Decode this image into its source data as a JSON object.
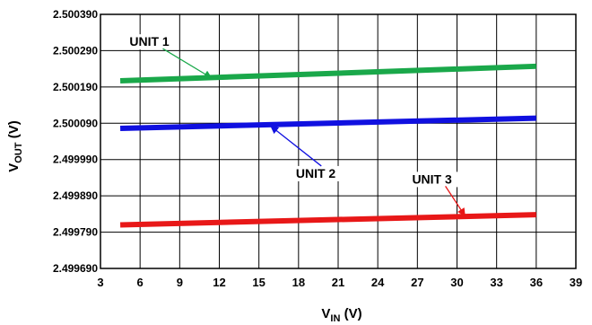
{
  "chart_data": {
    "type": "line",
    "xlabel": "V",
    "xlabel_sub": "IN",
    "xlabel_unit": " (V)",
    "ylabel": "V",
    "ylabel_sub": "OUT",
    "ylabel_unit": " (V)",
    "xlim": [
      3,
      39
    ],
    "ylim": [
      2.49969,
      2.50039
    ],
    "x_ticks": [
      "3",
      "6",
      "9",
      "12",
      "15",
      "18",
      "21",
      "24",
      "27",
      "30",
      "33",
      "36",
      "39"
    ],
    "x_tick_values": [
      3,
      6,
      9,
      12,
      15,
      18,
      21,
      24,
      27,
      30,
      33,
      36,
      39
    ],
    "y_ticks": [
      "2.499690",
      "2.499790",
      "2.499890",
      "2.499990",
      "2.500090",
      "2.500190",
      "2.500290",
      "2.500390"
    ],
    "y_tick_values": [
      2.49969,
      2.49979,
      2.49989,
      2.49999,
      2.50009,
      2.50019,
      2.50029,
      2.50039
    ],
    "grid": true,
    "series": [
      {
        "name": "UNIT 1",
        "color": "#1aa84a",
        "x": [
          4.5,
          36
        ],
        "y": [
          2.500207,
          2.500247
        ]
      },
      {
        "name": "UNIT 2",
        "color": "#1010e0",
        "x": [
          4.5,
          36
        ],
        "y": [
          2.500076,
          2.500104
        ]
      },
      {
        "name": "UNIT 3",
        "color": "#e81818",
        "x": [
          4.5,
          36
        ],
        "y": [
          2.49981,
          2.499838
        ]
      }
    ],
    "annotations": [
      {
        "text": "UNIT 1",
        "series": 0,
        "label_x": 5.2,
        "label_y": 2.500303,
        "arrow_x": 11.4,
        "arrow_y": 2.500215
      },
      {
        "text": "UNIT 2",
        "series": 1,
        "label_x": 17.8,
        "label_y": 2.49994,
        "arrow_x": 15.9,
        "arrow_y": 2.500082
      },
      {
        "text": "UNIT 3",
        "series": 2,
        "label_x": 26.6,
        "label_y": 2.499924,
        "arrow_x": 30.6,
        "arrow_y": 2.499835
      }
    ]
  }
}
